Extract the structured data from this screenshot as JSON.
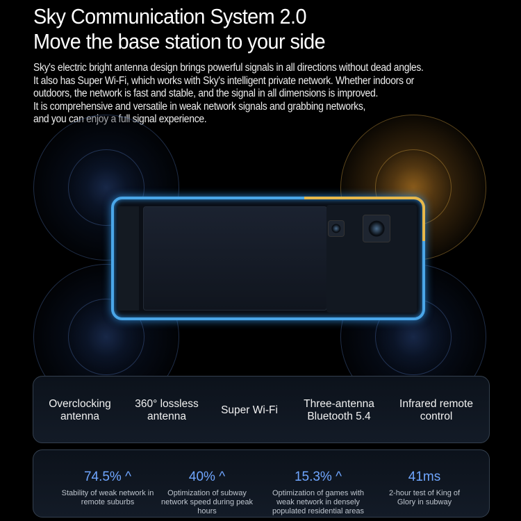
{
  "header": {
    "title": "Sky Communication System 2.0",
    "subtitle": "Move the base station to your side"
  },
  "description": [
    "Sky's electric bright antenna design brings powerful signals in all directions without dead angles.",
    "It also has Super Wi-Fi, which works with Sky's intelligent private network. Whether indoors or",
    "outdoors, the network is fast and stable, and the signal in all dimensions is improved.",
    "It is comprehensive and versatile in weak network signals and grabbing networks,",
    "and you can enjoy a full signal experience."
  ],
  "colors": {
    "accent": "#6fa6ff",
    "antenna_blue": "#4aa6e8",
    "antenna_orange": "#e8b84a"
  },
  "features": [
    {
      "line1": "Overclocking",
      "line2": "antenna"
    },
    {
      "line1": "360° lossless",
      "line2": "antenna"
    },
    {
      "line1": "Super Wi-Fi",
      "line2": ""
    },
    {
      "line1": "Three-antenna",
      "line2": "Bluetooth 5.4"
    },
    {
      "line1": "Infrared remote",
      "line2": "control"
    }
  ],
  "stats": [
    {
      "value": "74.5%",
      "arrow": "^",
      "label": "Stability of weak network in remote suburbs"
    },
    {
      "value": "40%",
      "arrow": "^",
      "label": "Optimization of subway network speed during peak hours"
    },
    {
      "value": "15.3%",
      "arrow": "^",
      "label": "Optimization of games with weak network in densely populated residential areas"
    },
    {
      "value": "41ms",
      "arrow": "",
      "label": "2-hour test of King of Glory in subway"
    }
  ]
}
